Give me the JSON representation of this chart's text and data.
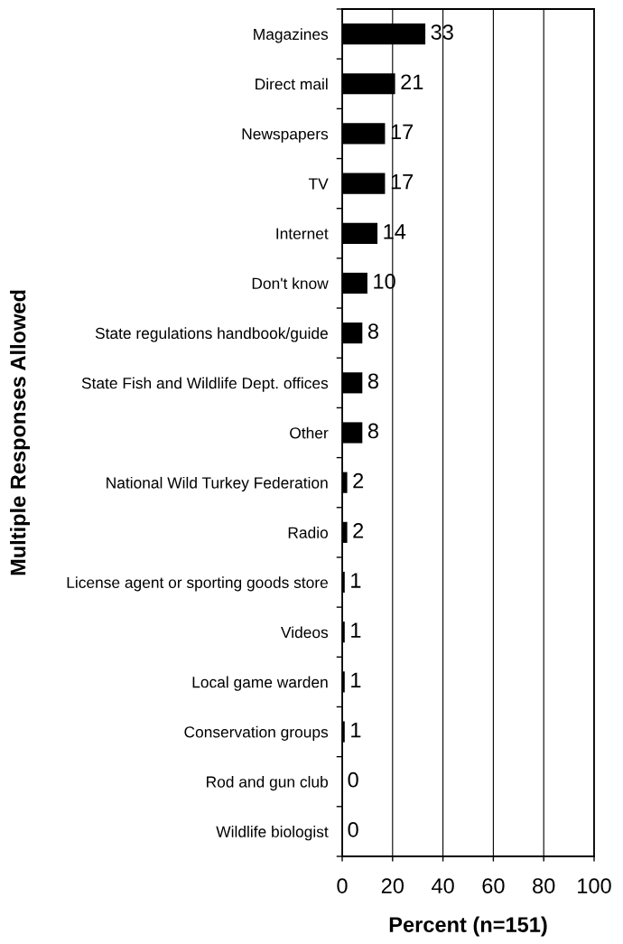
{
  "chart_data": {
    "type": "bar",
    "orientation": "horizontal",
    "categories": [
      "Magazines",
      "Direct mail",
      "Newspapers",
      "TV",
      "Internet",
      "Don't know",
      "State regulations handbook/guide",
      "State Fish and Wildlife Dept. offices",
      "Other",
      "National Wild Turkey Federation",
      "Radio",
      "License agent or sporting goods store",
      "Videos",
      "Local game warden",
      "Conservation groups",
      "Rod and gun club",
      "Wildlife biologist"
    ],
    "values": [
      33,
      21,
      17,
      17,
      14,
      10,
      8,
      8,
      8,
      2,
      2,
      1,
      1,
      1,
      1,
      0,
      0
    ],
    "color": "#000000",
    "xlim": [
      0,
      100
    ],
    "xticks": [
      0,
      20,
      40,
      60,
      80,
      100
    ],
    "xlabel": "Percent (n=151)",
    "ylabel": "Multiple Responses Allowed",
    "grid": "x",
    "data_labels": true
  }
}
